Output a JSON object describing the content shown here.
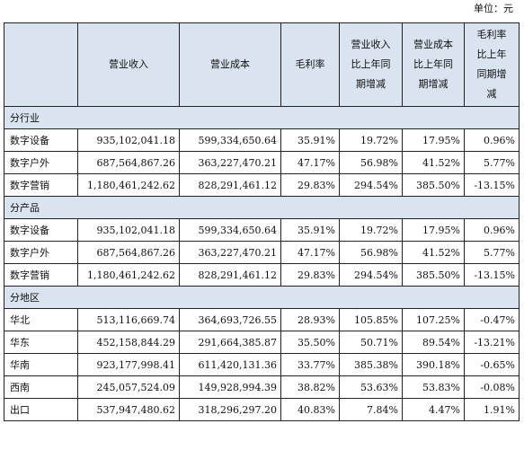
{
  "unit_label": "单位：元",
  "header": {
    "col0": "",
    "col1": "营业收入",
    "col2": "营业成本",
    "col3": "毛利率",
    "col4": [
      "营业收入",
      "比上年同",
      "期增减"
    ],
    "col5": [
      "营业成本",
      "比上年同",
      "期增减"
    ],
    "col6": [
      "毛利率",
      "比上年",
      "同期增",
      "减"
    ]
  },
  "sections": [
    {
      "title": "分行业",
      "rows": [
        {
          "name": "数字设备",
          "revenue": "935,102,041.18",
          "cost": "599,334,650.64",
          "margin": "35.91%",
          "rev_change": "19.72%",
          "cost_change": "17.95%",
          "margin_change": "0.96%"
        },
        {
          "name": "数字户外",
          "revenue": "687,564,867.26",
          "cost": "363,227,470.21",
          "margin": "47.17%",
          "rev_change": "56.98%",
          "cost_change": "41.52%",
          "margin_change": "5.77%"
        },
        {
          "name": "数字营销",
          "revenue": "1,180,461,242.62",
          "cost": "828,291,461.12",
          "margin": "29.83%",
          "rev_change": "294.54%",
          "cost_change": "385.50%",
          "margin_change": "-13.15%"
        }
      ]
    },
    {
      "title": "分产品",
      "rows": [
        {
          "name": "数字设备",
          "revenue": "935,102,041.18",
          "cost": "599,334,650.64",
          "margin": "35.91%",
          "rev_change": "19.72%",
          "cost_change": "17.95%",
          "margin_change": "0.96%"
        },
        {
          "name": "数字户外",
          "revenue": "687,564,867.26",
          "cost": "363,227,470.21",
          "margin": "47.17%",
          "rev_change": "56.98%",
          "cost_change": "41.52%",
          "margin_change": "5.77%"
        },
        {
          "name": "数字营销",
          "revenue": "1,180,461,242.62",
          "cost": "828,291,461.12",
          "margin": "29.83%",
          "rev_change": "294.54%",
          "cost_change": "385.50%",
          "margin_change": "-13.15%"
        }
      ]
    },
    {
      "title": "分地区",
      "rows": [
        {
          "name": "华北",
          "revenue": "513,116,669.74",
          "cost": "364,693,726.55",
          "margin": "28.93%",
          "rev_change": "105.85%",
          "cost_change": "107.25%",
          "margin_change": "-0.47%"
        },
        {
          "name": "华东",
          "revenue": "452,158,844.29",
          "cost": "291,664,385.87",
          "margin": "35.50%",
          "rev_change": "50.71%",
          "cost_change": "89.54%",
          "margin_change": "-13.21%"
        },
        {
          "name": "华南",
          "revenue": "923,177,998.41",
          "cost": "611,420,131.36",
          "margin": "33.77%",
          "rev_change": "385.38%",
          "cost_change": "390.18%",
          "margin_change": "-0.65%"
        },
        {
          "name": "西南",
          "revenue": "245,057,524.09",
          "cost": "149,928,994.39",
          "margin": "38.82%",
          "rev_change": "53.63%",
          "cost_change": "53.83%",
          "margin_change": "-0.08%"
        },
        {
          "name": "出口",
          "revenue": "537,947,480.62",
          "cost": "318,296,297.20",
          "margin": "40.83%",
          "rev_change": "7.84%",
          "cost_change": "4.47%",
          "margin_change": "1.91%"
        }
      ]
    }
  ]
}
